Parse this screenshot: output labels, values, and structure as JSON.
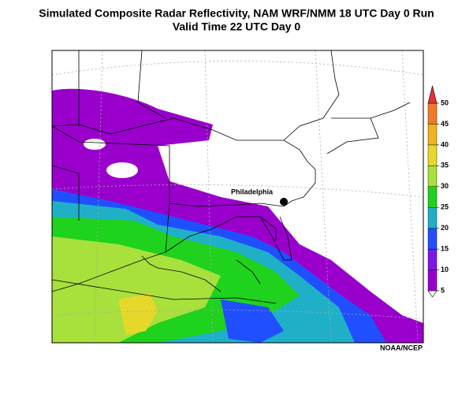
{
  "title": [
    "Simulated Composite Radar Reflectivity, NAM WRF/NMM 18 UTC Day 0 Run",
    "Valid Time 22 UTC Day 0"
  ],
  "city_label": "Philadelphia",
  "colorbar": {
    "ticks": [
      5,
      10,
      15,
      20,
      25,
      30,
      35,
      40,
      45,
      50
    ],
    "colors": [
      "#9900cc",
      "#7a18e6",
      "#1f4fff",
      "#1fb0c8",
      "#1ed21e",
      "#a8e03c",
      "#e6d82a",
      "#f0b21e",
      "#f07a2a"
    ],
    "over_color": "#e63232"
  },
  "credit": "NOAA/NCEP"
}
